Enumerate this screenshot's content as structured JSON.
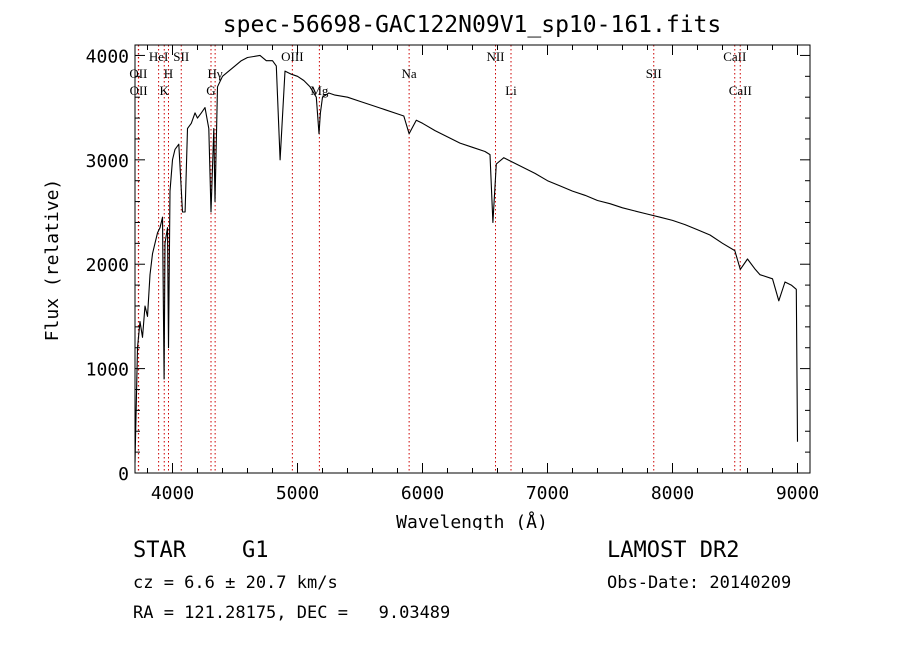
{
  "chart_data": {
    "type": "line",
    "title": "spec-56698-GAC122N09V1_sp10-161.fits",
    "xlabel": "Wavelength (Å)",
    "ylabel": "Flux (relative)",
    "xlim": [
      3700,
      9100
    ],
    "ylim": [
      0,
      4100
    ],
    "x_ticks": [
      4000,
      5000,
      6000,
      7000,
      8000,
      9000
    ],
    "y_ticks": [
      0,
      1000,
      2000,
      3000,
      4000
    ],
    "grid": false,
    "line_color": "#000000",
    "marker_color": "#cc0000",
    "series": [
      {
        "x": [
          3700,
          3720,
          3740,
          3760,
          3780,
          3800,
          3820,
          3840,
          3860,
          3880,
          3900,
          3920,
          3933,
          3940,
          3960,
          3968,
          3980,
          4000,
          4020,
          4050,
          4080,
          4101,
          4120,
          4150,
          4180,
          4200,
          4230,
          4260,
          4290,
          4308,
          4330,
          4340,
          4360,
          4400,
          4450,
          4500,
          4550,
          4600,
          4650,
          4700,
          4750,
          4800,
          4830,
          4861,
          4900,
          4950,
          5000,
          5050,
          5100,
          5150,
          5172,
          5183,
          5200,
          5250,
          5300,
          5400,
          5500,
          5600,
          5700,
          5800,
          5850,
          5893,
          5950,
          6000,
          6100,
          6200,
          6300,
          6400,
          6500,
          6540,
          6563,
          6590,
          6650,
          6700,
          6800,
          6900,
          7000,
          7100,
          7200,
          7300,
          7400,
          7500,
          7600,
          7700,
          7800,
          7900,
          8000,
          8100,
          8200,
          8300,
          8400,
          8498,
          8542,
          8600,
          8662,
          8700,
          8800,
          8850,
          8900,
          8950,
          8990,
          9000
        ],
        "y": [
          100,
          1200,
          1450,
          1300,
          1600,
          1500,
          1900,
          2100,
          2200,
          2300,
          2350,
          2450,
          900,
          2200,
          2350,
          1200,
          2700,
          3000,
          3100,
          3150,
          2500,
          2500,
          3300,
          3350,
          3450,
          3400,
          3450,
          3500,
          3300,
          2500,
          3300,
          2600,
          3700,
          3800,
          3850,
          3900,
          3950,
          3980,
          3990,
          4000,
          3950,
          3950,
          3900,
          3000,
          3850,
          3820,
          3800,
          3760,
          3700,
          3600,
          3250,
          3450,
          3600,
          3640,
          3620,
          3600,
          3560,
          3520,
          3480,
          3440,
          3420,
          3250,
          3380,
          3350,
          3280,
          3220,
          3160,
          3120,
          3080,
          3050,
          2400,
          2960,
          3020,
          2990,
          2930,
          2870,
          2800,
          2750,
          2700,
          2660,
          2610,
          2580,
          2540,
          2510,
          2480,
          2450,
          2420,
          2380,
          2330,
          2280,
          2200,
          2130,
          1950,
          2050,
          1950,
          1900,
          1860,
          1650,
          1830,
          1800,
          1760,
          300
        ]
      }
    ],
    "line_markers": [
      {
        "label": "OII",
        "wavelength": 3727,
        "row": 2
      },
      {
        "label": "OII",
        "wavelength": 3729,
        "row": 3
      },
      {
        "label": "HeI",
        "wavelength": 3889,
        "row": 1
      },
      {
        "label": "H",
        "wavelength": 3968,
        "row": 2
      },
      {
        "label": "K",
        "wavelength": 3934,
        "row": 3
      },
      {
        "label": "SII",
        "wavelength": 4070,
        "row": 1
      },
      {
        "label": "Hγ",
        "wavelength": 4341,
        "row": 2
      },
      {
        "label": "G",
        "wavelength": 4308,
        "row": 3
      },
      {
        "label": "OIII",
        "wavelength": 4959,
        "row": 1
      },
      {
        "label": "Mg",
        "wavelength": 5175,
        "row": 3
      },
      {
        "label": "Na",
        "wavelength": 5893,
        "row": 2
      },
      {
        "label": "NII",
        "wavelength": 6584,
        "row": 1
      },
      {
        "label": "Li",
        "wavelength": 6708,
        "row": 3
      },
      {
        "label": "SII",
        "wavelength": 7850,
        "row": 2
      },
      {
        "label": "CaII",
        "wavelength": 8498,
        "row": 1
      },
      {
        "label": "CaII",
        "wavelength": 8542,
        "row": 3
      }
    ]
  },
  "info": {
    "object_class": "STAR",
    "subclass": "G1",
    "redshift": "cz = 6.6 ± 20.7 km/s",
    "coords": "RA = 121.28175, DEC =   9.03489",
    "survey": "LAMOST DR2",
    "obs_date": "Obs-Date: 20140209"
  }
}
